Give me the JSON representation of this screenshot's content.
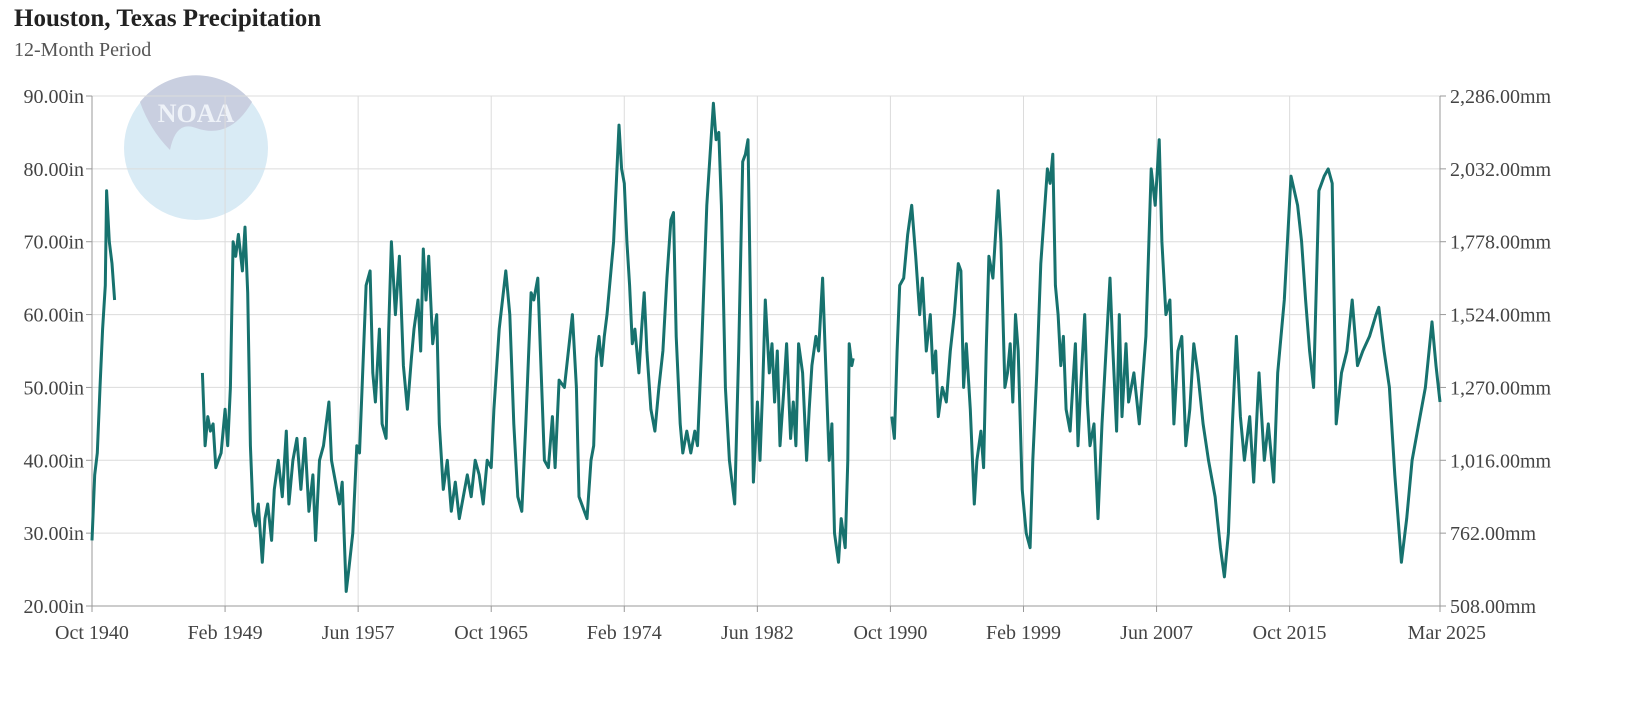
{
  "chart_data": {
    "type": "line",
    "title": "Houston, Texas Precipitation",
    "subtitle": "12-Month Period",
    "logo_text": "NOAA",
    "color": "#17726e",
    "grid": true,
    "xlim": [
      "1940-10",
      "2025-03"
    ],
    "xticks": [
      {
        "value": "1940-10",
        "label": "Oct 1940"
      },
      {
        "value": "1949-02",
        "label": "Feb 1949"
      },
      {
        "value": "1957-06",
        "label": "Jun 1957"
      },
      {
        "value": "1965-10",
        "label": "Oct 1965"
      },
      {
        "value": "1974-02",
        "label": "Feb 1974"
      },
      {
        "value": "1982-06",
        "label": "Jun 1982"
      },
      {
        "value": "1990-10",
        "label": "Oct 1990"
      },
      {
        "value": "1999-02",
        "label": "Feb 1999"
      },
      {
        "value": "2007-06",
        "label": "Jun 2007"
      },
      {
        "value": "2015-10",
        "label": "Oct 2015"
      },
      {
        "value": "2025-03",
        "label": "Mar 2025"
      }
    ],
    "ylim": [
      20,
      90
    ],
    "yticks": [
      {
        "value": 20,
        "label": "20.00in"
      },
      {
        "value": 30,
        "label": "30.00in"
      },
      {
        "value": 40,
        "label": "40.00in"
      },
      {
        "value": 50,
        "label": "50.00in"
      },
      {
        "value": 60,
        "label": "60.00in"
      },
      {
        "value": 70,
        "label": "70.00in"
      },
      {
        "value": 80,
        "label": "80.00in"
      },
      {
        "value": 90,
        "label": "90.00in"
      }
    ],
    "y2lim": [
      508,
      2286
    ],
    "y2ticks": [
      {
        "value": 508,
        "label": "508.00mm"
      },
      {
        "value": 762,
        "label": "762.00mm"
      },
      {
        "value": 1016,
        "label": "1,016.00mm"
      },
      {
        "value": 1270,
        "label": "1,270.00mm"
      },
      {
        "value": 1524,
        "label": "1,524.00mm"
      },
      {
        "value": 1778,
        "label": "1,778.00mm"
      },
      {
        "value": 2032,
        "label": "2,032.00mm"
      },
      {
        "value": 2286,
        "label": "2,286.00mm"
      }
    ],
    "x": [
      "1940-10",
      "1940-12",
      "1941-02",
      "1941-04",
      "1941-06",
      "1941-08",
      "1941-09",
      "1941-11",
      "1942-01",
      "1942-03",
      "1942-04",
      "1947-09",
      "1947-11",
      "1948-01",
      "1948-03",
      "1948-05",
      "1948-07",
      "1948-09",
      "1948-11",
      "1949-02",
      "1949-04",
      "1949-06",
      "1949-08",
      "1949-10",
      "1949-12",
      "1950-03",
      "1950-05",
      "1950-07",
      "1950-09",
      "1950-11",
      "1951-01",
      "1951-03",
      "1951-06",
      "1951-08",
      "1951-10",
      "1952-01",
      "1952-03",
      "1952-06",
      "1952-09",
      "1952-12",
      "1953-02",
      "1953-05",
      "1953-08",
      "1953-11",
      "1954-02",
      "1954-05",
      "1954-08",
      "1954-10",
      "1955-01",
      "1955-04",
      "1955-08",
      "1955-10",
      "1956-01",
      "1956-04",
      "1956-06",
      "1956-09",
      "1956-11",
      "1957-02",
      "1957-05",
      "1957-07",
      "1957-09",
      "1957-12",
      "1958-03",
      "1958-05",
      "1958-07",
      "1958-10",
      "1958-12",
      "1959-03",
      "1959-05",
      "1959-07",
      "1959-10",
      "1960-01",
      "1960-04",
      "1960-07",
      "1960-10",
      "1960-12",
      "1961-03",
      "1961-05",
      "1961-07",
      "1961-09",
      "1961-11",
      "1962-02",
      "1962-05",
      "1962-07",
      "1962-10",
      "1963-01",
      "1963-04",
      "1963-07",
      "1963-10",
      "1964-01",
      "1964-04",
      "1964-07",
      "1964-10",
      "1965-01",
      "1965-04",
      "1965-07",
      "1965-10",
      "1965-12",
      "1966-04",
      "1966-09",
      "1966-12",
      "1967-03",
      "1967-06",
      "1967-09",
      "1967-12",
      "1968-04",
      "1968-06",
      "1968-09",
      "1968-11",
      "1969-02",
      "1969-05",
      "1969-08",
      "1969-10",
      "1970-01",
      "1970-05",
      "1970-11",
      "1971-02",
      "1971-04",
      "1971-10",
      "1972-01",
      "1972-03",
      "1972-05",
      "1972-07",
      "1972-09",
      "1972-11",
      "1973-01",
      "1973-06",
      "1973-10",
      "1973-12",
      "1974-02",
      "1974-04",
      "1974-06",
      "1974-08",
      "1974-10",
      "1975-01",
      "1975-03",
      "1975-05",
      "1975-07",
      "1975-10",
      "1976-01",
      "1976-04",
      "1976-07",
      "1976-10",
      "1977-01",
      "1977-03",
      "1977-05",
      "1977-08",
      "1977-10",
      "1978-01",
      "1978-04",
      "1978-07",
      "1978-09",
      "1978-12",
      "1979-04",
      "1979-09",
      "1979-11",
      "1980-01",
      "1980-03",
      "1980-06",
      "1980-09",
      "1981-01",
      "1981-04",
      "1981-07",
      "1981-09",
      "1981-11",
      "1982-01",
      "1982-03",
      "1982-06",
      "1982-08",
      "1982-10",
      "1982-12",
      "1983-03",
      "1983-05",
      "1983-07",
      "1983-09",
      "1983-11",
      "1984-02",
      "1984-04",
      "1984-07",
      "1984-09",
      "1984-11",
      "1985-01",
      "1985-04",
      "1985-07",
      "1985-09",
      "1985-11",
      "1986-02",
      "1986-04",
      "1986-07",
      "1986-09",
      "1986-12",
      "1987-02",
      "1987-04",
      "1987-07",
      "1987-09",
      "1987-12",
      "1988-02",
      "1988-03",
      "1988-05",
      "1988-06",
      "1988-07",
      "1990-11",
      "1991-01",
      "1991-03",
      "1991-05",
      "1991-08",
      "1991-11",
      "1992-02",
      "1992-05",
      "1992-08",
      "1992-10",
      "1993-01",
      "1993-04",
      "1993-06",
      "1993-08",
      "1993-10",
      "1994-01",
      "1994-04",
      "1994-07",
      "1994-10",
      "1995-01",
      "1995-03",
      "1995-05",
      "1995-07",
      "1995-10",
      "1996-01",
      "1996-03",
      "1996-06",
      "1996-08",
      "1996-10",
      "1996-12",
      "1997-03",
      "1997-07",
      "1997-09",
      "1997-12",
      "1998-02",
      "1998-04",
      "1998-06",
      "1998-08",
      "1998-10",
      "1999-01",
      "1999-04",
      "1999-07",
      "1999-09",
      "1999-12",
      "2000-03",
      "2000-08",
      "2000-10",
      "2000-12",
      "2001-02",
      "2001-04",
      "2001-06",
      "2001-08",
      "2001-10",
      "2002-01",
      "2002-03",
      "2002-05",
      "2002-07",
      "2002-09",
      "2002-12",
      "2003-02",
      "2003-04",
      "2003-07",
      "2003-10",
      "2004-01",
      "2004-04",
      "2004-07",
      "2004-09",
      "2004-12",
      "2005-02",
      "2005-04",
      "2005-07",
      "2005-09",
      "2006-01",
      "2006-05",
      "2006-10",
      "2007-02",
      "2007-05",
      "2007-08",
      "2007-10",
      "2008-01",
      "2008-04",
      "2008-07",
      "2008-10",
      "2009-01",
      "2009-04",
      "2009-07",
      "2009-10",
      "2010-01",
      "2010-05",
      "2010-09",
      "2011-02",
      "2011-06",
      "2011-09",
      "2011-12",
      "2012-03",
      "2012-06",
      "2012-09",
      "2012-12",
      "2013-04",
      "2013-07",
      "2013-11",
      "2014-03",
      "2014-06",
      "2014-10",
      "2015-01",
      "2015-06",
      "2015-11",
      "2016-04",
      "2016-07",
      "2016-10",
      "2017-01",
      "2017-04",
      "2017-08",
      "2017-12",
      "2018-03",
      "2018-06",
      "2018-09",
      "2019-01",
      "2019-05",
      "2019-09",
      "2020-01",
      "2020-05",
      "2020-10",
      "2021-03",
      "2021-05",
      "2021-09",
      "2022-01",
      "2022-05",
      "2022-10",
      "2023-02",
      "2023-06",
      "2023-11",
      "2024-04",
      "2024-09",
      "2024-12",
      "2025-03"
    ],
    "values": [
      29,
      38,
      41,
      50,
      58,
      64,
      77,
      70,
      67,
      62,
      null,
      52,
      42,
      46,
      44,
      45,
      39,
      40,
      41,
      47,
      42,
      50,
      70,
      68,
      71,
      66,
      72,
      63,
      42,
      33,
      31,
      34,
      26,
      32,
      34,
      29,
      36,
      40,
      35,
      44,
      34,
      40,
      43,
      36,
      43,
      33,
      38,
      29,
      40,
      42,
      48,
      40,
      37,
      34,
      37,
      22,
      25,
      30,
      42,
      41,
      50,
      64,
      66,
      52,
      48,
      58,
      45,
      43,
      58,
      70,
      60,
      68,
      53,
      47,
      54,
      58,
      62,
      55,
      69,
      62,
      68,
      56,
      60,
      45,
      36,
      40,
      33,
      37,
      32,
      35,
      38,
      35,
      40,
      38,
      34,
      40,
      39,
      47,
      58,
      66,
      60,
      45,
      35,
      33,
      45,
      63,
      62,
      65,
      55,
      40,
      39,
      46,
      39,
      51,
      50,
      60,
      50,
      35,
      32,
      40,
      42,
      54,
      57,
      53,
      57,
      60,
      70,
      86,
      80,
      78,
      70,
      64,
      56,
      58,
      52,
      58,
      63,
      55,
      47,
      44,
      50,
      55,
      65,
      73,
      74,
      57,
      45,
      41,
      44,
      41,
      44,
      42,
      55,
      75,
      89,
      84,
      85,
      75,
      50,
      40,
      34,
      55,
      81,
      82,
      84,
      60,
      37,
      48,
      40,
      50,
      62,
      52,
      56,
      48,
      55,
      42,
      50,
      56,
      43,
      48,
      42,
      56,
      52,
      40,
      47,
      53,
      57,
      55,
      65,
      55,
      40,
      45,
      30,
      26,
      32,
      28,
      40,
      56,
      53,
      54,
      null,
      46,
      43,
      55,
      64,
      65,
      71,
      75,
      68,
      60,
      65,
      55,
      60,
      52,
      55,
      46,
      50,
      48,
      55,
      60,
      67,
      66,
      50,
      56,
      47,
      34,
      40,
      44,
      39,
      55,
      68,
      65,
      77,
      70,
      50,
      52,
      56,
      48,
      60,
      55,
      36,
      30,
      28,
      40,
      52,
      67,
      80,
      78,
      82,
      64,
      60,
      53,
      57,
      47,
      44,
      50,
      56,
      42,
      50,
      60,
      48,
      42,
      45,
      32,
      45,
      55,
      65,
      56,
      44,
      60,
      46,
      56,
      48,
      52,
      45,
      57,
      80,
      75,
      84,
      70,
      60,
      62,
      45,
      55,
      57,
      42,
      47,
      56,
      52,
      45,
      40,
      35,
      28,
      24,
      30,
      45,
      57,
      46,
      40,
      46,
      37,
      52,
      40,
      45,
      37,
      52,
      62,
      79,
      75,
      70,
      62,
      55,
      50,
      77,
      79,
      80,
      78,
      45,
      52,
      55,
      62,
      53,
      55,
      57,
      60,
      61,
      55,
      50,
      38,
      26,
      32,
      40,
      45,
      50,
      59,
      53,
      48
    ]
  }
}
